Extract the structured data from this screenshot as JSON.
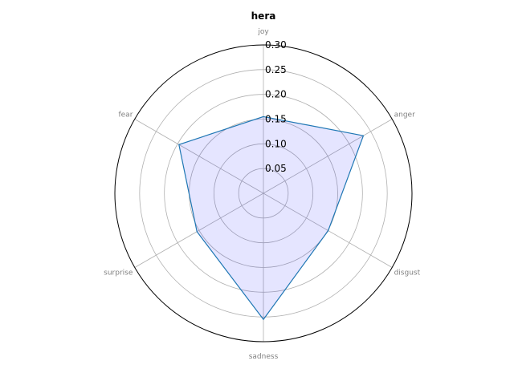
{
  "chart_data": {
    "type": "radar",
    "title": "hera",
    "categories": [
      "joy",
      "anger",
      "disgust",
      "sadness",
      "surprise",
      "fear"
    ],
    "values": [
      0.155,
      0.233,
      0.151,
      0.255,
      0.155,
      0.197
    ],
    "rlim": [
      0,
      0.3
    ],
    "rticks": [
      0.05,
      0.1,
      0.15,
      0.2,
      0.25,
      0.3
    ],
    "rtick_labels": [
      "0.05",
      "0.10",
      "0.15",
      "0.20",
      "0.25",
      "0.30"
    ],
    "grid": true,
    "colors": {
      "line": "#1f77b4",
      "fill": "#0000ff",
      "grid": "#b0b0b0",
      "frame": "#000000",
      "category_label": "#808080"
    }
  }
}
